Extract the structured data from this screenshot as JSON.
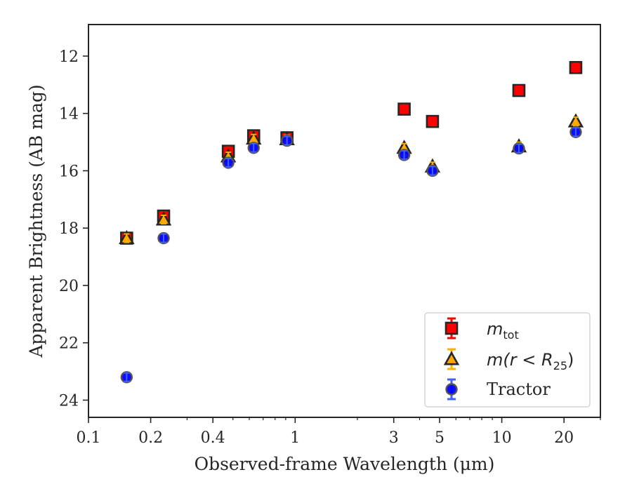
{
  "chart_data": {
    "type": "scatter",
    "title": "",
    "xlabel": "Observed-frame Wavelength (μm)",
    "ylabel": "Apparent Brightness (AB mag)",
    "xscale": "log",
    "xlim": [
      0.1,
      30
    ],
    "ylim": [
      24.6,
      10.9
    ],
    "y_inverted": true,
    "x_major_ticks": [
      0.1,
      0.2,
      0.4,
      1,
      3,
      5,
      10,
      20
    ],
    "x_tick_labels": [
      "0.1",
      "0.2",
      "0.4",
      "1",
      "3",
      "5",
      "10",
      "20"
    ],
    "y_ticks": [
      12,
      14,
      16,
      18,
      20,
      22,
      24
    ],
    "y_tick_labels": [
      "12",
      "14",
      "16",
      "18",
      "20",
      "22",
      "24"
    ],
    "grid": false,
    "legend_position": "lower-right",
    "series": [
      {
        "name": "m_tot",
        "legend_main": "m",
        "legend_sub": "tot",
        "marker": "square",
        "color": "#ff0000",
        "edge_color": "#262626",
        "err_color": "#ff0000",
        "x": [
          0.153,
          0.231,
          0.475,
          0.63,
          0.913,
          3.37,
          4.62,
          12.1,
          22.8
        ],
        "y": [
          18.35,
          17.58,
          15.32,
          14.78,
          14.85,
          13.85,
          14.28,
          13.2,
          12.4
        ]
      },
      {
        "name": "m(r < R25)",
        "legend_main": "m(r < R",
        "legend_sub": "25",
        "legend_tail": ")",
        "marker": "triangle",
        "color": "#ffa500",
        "edge_color": "#262626",
        "err_color": "#ffb000",
        "x": [
          0.153,
          0.231,
          0.475,
          0.63,
          0.913,
          3.37,
          4.62,
          12.1,
          22.8
        ],
        "y": [
          18.35,
          17.7,
          15.5,
          14.88,
          14.9,
          15.2,
          15.85,
          15.15,
          14.28
        ]
      },
      {
        "name": "Tractor",
        "legend_main": "Tractor",
        "marker": "circle",
        "color": "#0000ff",
        "edge_color": "#555555",
        "err_color": "#4060ff",
        "x": [
          0.153,
          0.231,
          0.475,
          0.63,
          0.913,
          3.37,
          4.62,
          12.1,
          22.8
        ],
        "y": [
          23.2,
          18.35,
          15.72,
          15.2,
          14.95,
          15.45,
          16.0,
          15.22,
          14.65
        ]
      }
    ]
  }
}
